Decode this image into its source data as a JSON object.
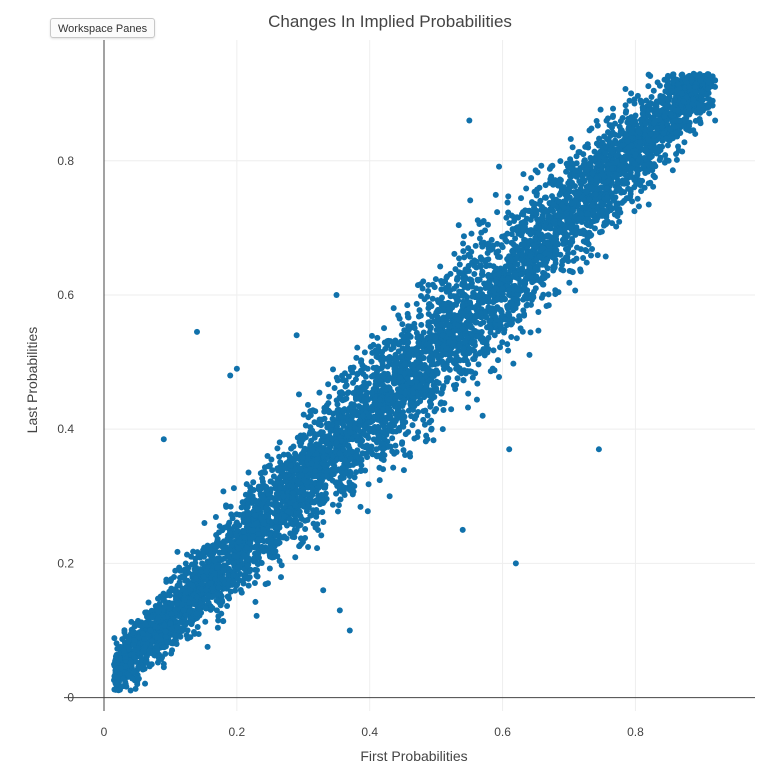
{
  "toolbar": {
    "workspace_panes_label": "Workspace Panes"
  },
  "chart_data": {
    "type": "scatter",
    "title": "Changes In Implied Probabilities",
    "xlabel": "First Probabilities",
    "ylabel": "Last Probabilities",
    "xlim": [
      0,
      0.98
    ],
    "ylim": [
      -0.02,
      0.98
    ],
    "xticks": [
      0,
      0.2,
      0.4,
      0.6,
      0.8
    ],
    "xtick_labels": [
      "0",
      "0.2",
      "0.4",
      "0.6",
      "0.8"
    ],
    "yticks": [
      0,
      0.2,
      0.4,
      0.6,
      0.8
    ],
    "ytick_labels": [
      "0",
      "0.2",
      "0.4",
      "0.6",
      "0.8"
    ],
    "grid": true,
    "marker_color": "#1071ab",
    "series": [
      {
        "x": [
          0.02,
          0.04,
          0.06,
          0.08,
          0.1,
          0.12,
          0.14,
          0.16,
          0.18,
          0.2,
          0.22,
          0.24,
          0.26,
          0.28,
          0.3,
          0.32,
          0.34,
          0.36,
          0.38,
          0.4,
          0.42,
          0.44,
          0.46,
          0.48,
          0.5,
          0.52,
          0.54,
          0.56,
          0.58,
          0.6,
          0.62,
          0.64,
          0.66,
          0.68,
          0.7,
          0.72,
          0.74,
          0.76,
          0.78,
          0.8,
          0.82,
          0.84,
          0.86,
          0.88,
          0.9,
          0.92,
          0.03,
          0.07,
          0.11,
          0.15,
          0.19,
          0.23,
          0.27,
          0.31,
          0.35,
          0.39,
          0.43,
          0.47,
          0.51,
          0.55,
          0.59,
          0.63,
          0.67,
          0.71,
          0.75,
          0.79,
          0.83,
          0.87,
          0.91,
          0.05,
          0.09,
          0.13,
          0.17,
          0.21,
          0.25,
          0.29,
          0.33,
          0.37,
          0.41,
          0.45,
          0.49,
          0.53,
          0.57,
          0.61,
          0.65,
          0.69,
          0.73,
          0.77,
          0.81,
          0.85,
          0.89,
          0.14,
          0.09,
          0.19,
          0.2,
          0.62,
          0.745,
          0.57,
          0.54,
          0.37,
          0.355,
          0.51,
          0.5,
          0.43,
          0.35,
          0.29,
          0.33,
          0.92,
          0.89,
          0.61,
          0.65,
          0.55,
          0.47
        ],
        "y": [
          0.03,
          0.05,
          0.07,
          0.09,
          0.11,
          0.13,
          0.15,
          0.17,
          0.19,
          0.21,
          0.23,
          0.25,
          0.27,
          0.29,
          0.31,
          0.33,
          0.35,
          0.37,
          0.39,
          0.41,
          0.43,
          0.45,
          0.47,
          0.49,
          0.51,
          0.53,
          0.55,
          0.57,
          0.59,
          0.61,
          0.63,
          0.65,
          0.67,
          0.69,
          0.71,
          0.73,
          0.75,
          0.77,
          0.79,
          0.81,
          0.83,
          0.85,
          0.86,
          0.88,
          0.89,
          0.92,
          0.07,
          0.1,
          0.14,
          0.18,
          0.22,
          0.26,
          0.3,
          0.34,
          0.38,
          0.42,
          0.46,
          0.5,
          0.54,
          0.58,
          0.62,
          0.66,
          0.7,
          0.74,
          0.78,
          0.82,
          0.86,
          0.9,
          0.88,
          0.02,
          0.05,
          0.09,
          0.13,
          0.17,
          0.21,
          0.25,
          0.29,
          0.33,
          0.37,
          0.41,
          0.45,
          0.49,
          0.53,
          0.57,
          0.61,
          0.65,
          0.69,
          0.73,
          0.77,
          0.8,
          0.84,
          0.545,
          0.385,
          0.48,
          0.49,
          0.2,
          0.37,
          0.42,
          0.25,
          0.1,
          0.13,
          0.4,
          0.43,
          0.3,
          0.6,
          0.54,
          0.16,
          0.86,
          0.91,
          0.37,
          0.64,
          0.86,
          0.42
        ]
      }
    ]
  }
}
